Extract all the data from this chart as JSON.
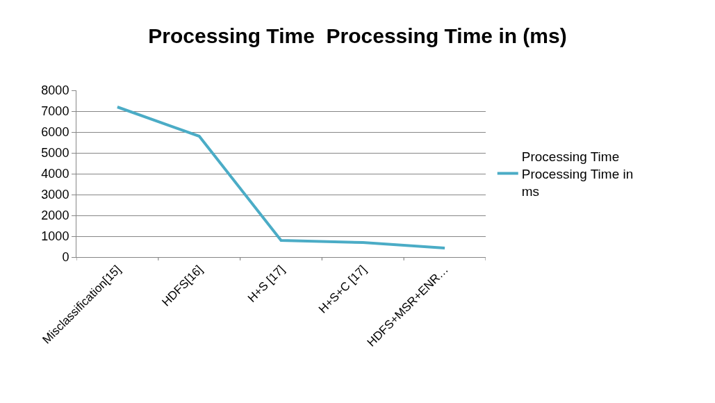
{
  "chart_data": {
    "type": "line",
    "title": "Processing Time  Processing Time in (ms)",
    "categories": [
      "Misclassification[15]",
      "HDFS[16]",
      "H+S [17]",
      "H+S+C [17]",
      "HDFS+MSR+ENR…"
    ],
    "series": [
      {
        "name": "Processing Time Processing Time in ms",
        "color": "#4bacc6",
        "values": [
          7200,
          5800,
          800,
          700,
          430
        ]
      }
    ],
    "ylim": [
      0,
      8000
    ],
    "yticks": [
      0,
      1000,
      2000,
      3000,
      4000,
      5000,
      6000,
      7000,
      8000
    ],
    "grid": "y",
    "legend": "right",
    "marker": "none",
    "line_style": "solid"
  }
}
